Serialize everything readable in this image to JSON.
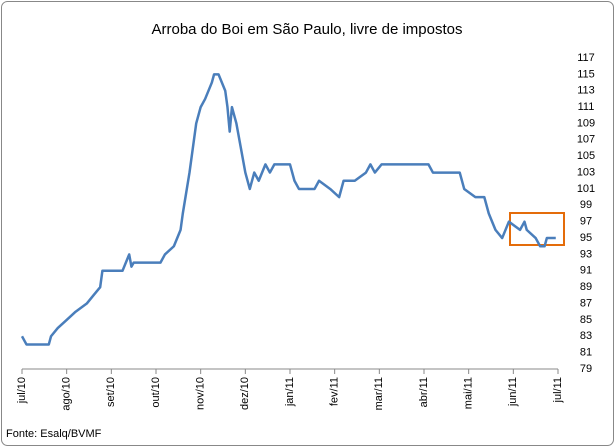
{
  "chart_data": {
    "type": "line",
    "title": "Arroba do Boi em São Paulo, livre de impostos",
    "source": "Fonte: Esalq/BVMF",
    "xlim": [
      0,
      12
    ],
    "xticks": [
      {
        "value": 0,
        "label": "jul/10"
      },
      {
        "value": 1,
        "label": "ago/10"
      },
      {
        "value": 2,
        "label": "set/10"
      },
      {
        "value": 3,
        "label": "out/10"
      },
      {
        "value": 4,
        "label": "nov/10"
      },
      {
        "value": 5,
        "label": "dez/10"
      },
      {
        "value": 6,
        "label": "jan/11"
      },
      {
        "value": 7,
        "label": "fev/11"
      },
      {
        "value": 8,
        "label": "mar/11"
      },
      {
        "value": 9,
        "label": "abr/11"
      },
      {
        "value": 10,
        "label": "mai/11"
      },
      {
        "value": 11,
        "label": "jun/11"
      },
      {
        "value": 12,
        "label": "jul/11"
      }
    ],
    "ylim": [
      79,
      117
    ],
    "yticks": [
      79,
      81,
      83,
      85,
      87,
      89,
      91,
      93,
      95,
      97,
      99,
      101,
      103,
      105,
      107,
      109,
      111,
      113,
      115,
      117
    ],
    "grid": false,
    "series": [
      {
        "color": "#4a7ebb",
        "x": [
          0,
          0.1,
          0.6,
          0.65,
          0.8,
          1.0,
          1.2,
          1.45,
          1.6,
          1.75,
          1.8,
          2.25,
          2.4,
          2.45,
          2.5,
          3.1,
          3.2,
          3.4,
          3.55,
          3.6,
          3.75,
          3.9,
          4.0,
          4.1,
          4.25,
          4.3,
          4.4,
          4.55,
          4.6,
          4.65,
          4.7,
          4.8,
          4.9,
          5.0,
          5.1,
          5.2,
          5.3,
          5.45,
          5.55,
          5.65,
          6.0,
          6.1,
          6.2,
          6.55,
          6.65,
          6.9,
          7.1,
          7.2,
          7.45,
          7.7,
          7.8,
          7.9,
          8.05,
          9.1,
          9.2,
          9.8,
          9.9,
          10.15,
          10.35,
          10.45,
          10.6,
          10.75,
          10.9,
          11.15,
          11.25,
          11.3,
          11.5,
          11.6,
          11.7,
          11.75,
          11.95
        ],
        "values": [
          83,
          82,
          82,
          83,
          84,
          85,
          86,
          87,
          88,
          89,
          91,
          91,
          93,
          91.5,
          92,
          92,
          93,
          94,
          96,
          98,
          103,
          109,
          111,
          112,
          114,
          115,
          115,
          113,
          111,
          108,
          111,
          109,
          106,
          103,
          101,
          103,
          102,
          104,
          103,
          104,
          104,
          102,
          101,
          101,
          102,
          101,
          100,
          102,
          102,
          103,
          104,
          103,
          104,
          104,
          103,
          103,
          101,
          100,
          100,
          98,
          96,
          95,
          97,
          96,
          97,
          96,
          95,
          94,
          94,
          95,
          95
        ]
      }
    ]
  }
}
